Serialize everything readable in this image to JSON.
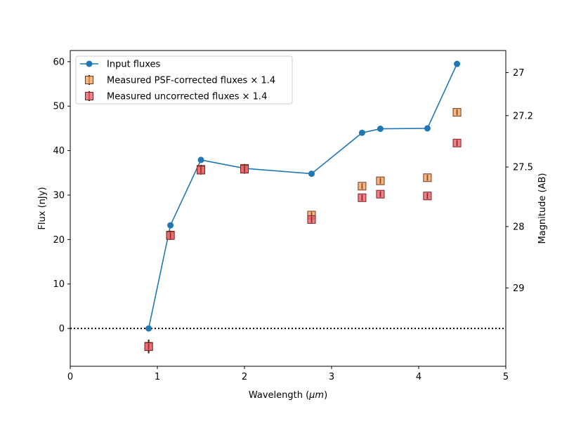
{
  "chart_data": {
    "type": "scatter",
    "xlabel_main": "Wavelength (",
    "xlabel_unit": "μm",
    "xlabel_close": ")",
    "ylabel": "Flux (nJy)",
    "ylabel_right": "Magnitude (AB)",
    "xlim": [
      0,
      5
    ],
    "ylim": [
      -8.5,
      62.5
    ],
    "x_ticks": [
      0,
      1,
      2,
      3,
      4,
      5
    ],
    "y_ticks": [
      0,
      10,
      20,
      30,
      40,
      50,
      60
    ],
    "right_ticks": [
      {
        "label": "27",
        "value": 27
      },
      {
        "label": "27.2",
        "value": 27.2
      },
      {
        "label": "27.5",
        "value": 27.5
      },
      {
        "label": "28",
        "value": 28
      },
      {
        "label": "29",
        "value": 29
      }
    ],
    "zero_line": true,
    "legend_position": "upper-left",
    "series": [
      {
        "name": "Input fluxes",
        "kind": "line-marker",
        "color": "#1f77b4",
        "x": [
          0.9,
          1.15,
          1.5,
          2.0,
          2.77,
          3.35,
          3.56,
          4.1,
          4.44
        ],
        "y": [
          0.0,
          23.2,
          37.9,
          36.0,
          34.8,
          44.0,
          44.9,
          45.0,
          59.5
        ]
      },
      {
        "name": "Measured PSF-corrected fluxes × 1.4",
        "kind": "square-errorbar",
        "color": "#f4a261",
        "edge": "#6b3a1f",
        "x": [
          0.9,
          1.15,
          1.5,
          2.0,
          2.77,
          3.35,
          3.56,
          4.1,
          4.44
        ],
        "y": [
          -4.0,
          21.0,
          35.8,
          36.0,
          25.5,
          32.0,
          33.2,
          33.9,
          48.6
        ],
        "err": [
          1.5,
          1.0,
          1.0,
          1.0,
          0.8,
          0.7,
          0.7,
          0.7,
          0.7
        ]
      },
      {
        "name": "Measured uncorrected fluxes × 1.4",
        "kind": "square-errorbar",
        "color": "#e8606a",
        "edge": "#7a1f24",
        "x": [
          0.9,
          1.15,
          1.5,
          2.0,
          2.77,
          3.35,
          3.56,
          4.1,
          4.44
        ],
        "y": [
          -4.1,
          20.9,
          35.6,
          35.8,
          24.5,
          29.4,
          30.2,
          29.8,
          41.7
        ],
        "err": [
          1.5,
          1.0,
          1.0,
          1.0,
          0.8,
          0.7,
          0.7,
          0.7,
          0.7
        ]
      }
    ]
  }
}
